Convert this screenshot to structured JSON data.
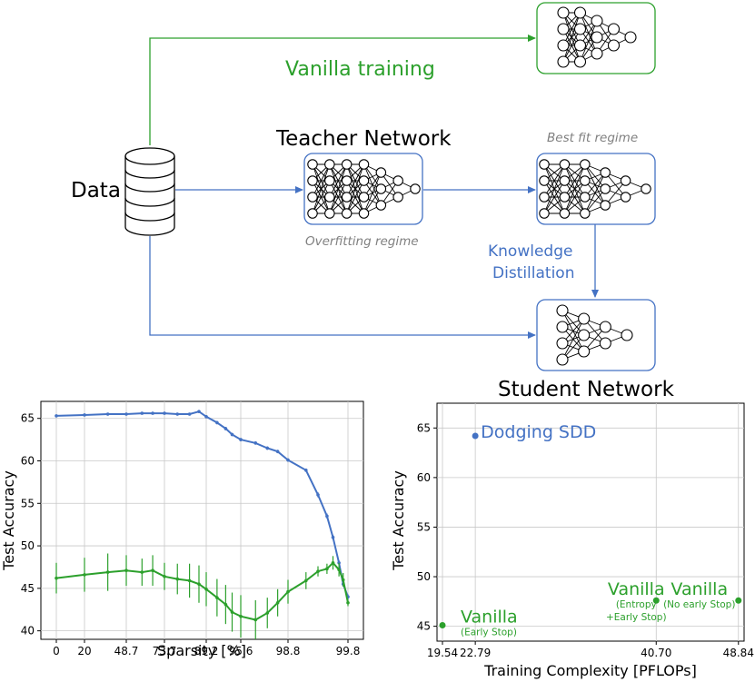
{
  "diagram": {
    "data_label": "Data",
    "vanilla_label": "Vanilla training",
    "teacher_title": "Teacher Network",
    "teacher_caption": "Overfitting regime",
    "bestfit_caption": "Best fit regime",
    "kd_line1": "Knowledge",
    "kd_line2": "Distillation",
    "student_title": "Student Network",
    "colors": {
      "green": "#2ca02c",
      "blue": "#4472c4",
      "grey_caption": "#808080"
    }
  },
  "chart_data": [
    {
      "type": "line",
      "title": "",
      "xlabel": "Sparsity [%]",
      "ylabel": "Test Accuracy",
      "x_ticks": [
        0,
        20,
        48.7,
        73.7,
        89.2,
        95.6,
        98.8,
        99.8
      ],
      "x_tick_labels": [
        "0",
        "20",
        "48.7",
        "73.7",
        "89.2",
        "95.6",
        "98.8",
        "99.8"
      ],
      "y_ticks": [
        40,
        45,
        50,
        55,
        60,
        65
      ],
      "ylim": [
        39,
        67
      ],
      "grid": true,
      "series": [
        {
          "color": "#4472c4",
          "x": [
            0,
            20,
            36,
            48.7,
            59,
            66,
            73.7,
            78.5,
            83,
            86.5,
            89.2,
            91.2,
            92.8,
            94,
            95.6,
            96.6,
            97.4,
            98.1,
            98.8,
            99.1,
            99.3,
            99.45,
            99.55,
            99.65,
            99.72,
            99.8
          ],
          "values": [
            65.3,
            65.4,
            65.5,
            65.5,
            65.6,
            65.6,
            65.6,
            65.5,
            65.5,
            65.8,
            65.2,
            64.5,
            63.8,
            63.1,
            62.5,
            62.1,
            61.5,
            61.1,
            60.1,
            58.9,
            56.0,
            53.5,
            51.0,
            48.0,
            45.5,
            44.0
          ],
          "error": [
            0.1,
            0.1,
            0.1,
            0.1,
            0.1,
            0.1,
            0.1,
            0.1,
            0.1,
            0.1,
            0.1,
            0.2,
            0.2,
            0.2,
            0.2,
            0.2,
            0.2,
            0.2,
            0.2,
            0.2,
            0.3,
            0.3,
            0.3,
            0.3,
            0.3,
            0.3
          ]
        },
        {
          "color": "#2ca02c",
          "x": [
            0,
            20,
            36,
            48.7,
            59,
            66,
            73.7,
            78.5,
            83,
            86.5,
            89.2,
            91.2,
            92.8,
            94,
            95.6,
            96.6,
            97.4,
            98.1,
            98.8,
            99.1,
            99.3,
            99.45,
            99.55,
            99.65,
            99.72,
            99.8
          ],
          "values": [
            46.2,
            46.6,
            46.9,
            47.1,
            46.9,
            47.1,
            46.4,
            46.1,
            45.9,
            45.5,
            44.9,
            43.9,
            43.1,
            42.2,
            41.7,
            41.3,
            42.1,
            43.3,
            44.6,
            45.9,
            47.0,
            47.3,
            48.0,
            47.2,
            46.0,
            43.3
          ],
          "error": [
            1.8,
            2.0,
            2.2,
            1.8,
            1.6,
            1.8,
            1.6,
            1.8,
            2.0,
            2.2,
            2.0,
            2.2,
            2.3,
            2.3,
            2.5,
            2.3,
            1.8,
            1.6,
            1.4,
            1.0,
            0.6,
            0.6,
            0.8,
            0.8,
            0.8,
            0.4
          ]
        }
      ]
    },
    {
      "type": "scatter",
      "title": "",
      "xlabel": "Training Complexity [PFLOPs]",
      "ylabel": "Test Accuracy",
      "x_ticks": [
        19.54,
        22.79,
        40.7,
        48.84
      ],
      "x_tick_labels": [
        "19.54",
        "22.79",
        "40.70",
        "48.84"
      ],
      "y_ticks": [
        45,
        50,
        55,
        60,
        65
      ],
      "xlim": [
        19.0,
        49.4
      ],
      "ylim": [
        43.5,
        67.5
      ],
      "grid": true,
      "points": [
        {
          "x": 22.79,
          "y": 64.2,
          "color": "#4472c4",
          "label": "Dodging SDD",
          "sublabel": ""
        },
        {
          "x": 19.54,
          "y": 45.1,
          "color": "#2ca02c",
          "label": "Vanilla",
          "sublabel": "(Early Stop)"
        },
        {
          "x": 40.7,
          "y": 47.6,
          "color": "#2ca02c",
          "label": "Vanilla",
          "sublabel": "(Entropy\n+Early Stop)"
        },
        {
          "x": 48.84,
          "y": 47.6,
          "color": "#2ca02c",
          "label": "Vanilla",
          "sublabel": "(No early Stop)"
        }
      ]
    }
  ]
}
